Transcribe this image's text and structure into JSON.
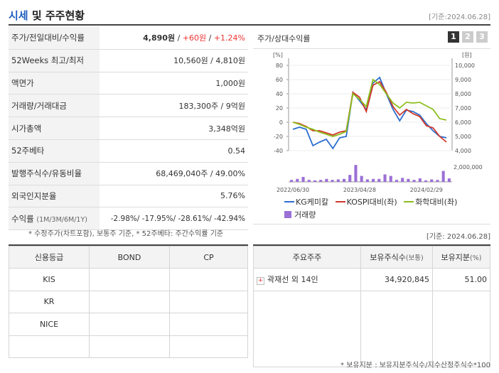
{
  "header": {
    "title_a": "시세",
    "title_b": " 및 주주현황",
    "date": "[기준:2024.06.28]"
  },
  "quote": {
    "rows": [
      {
        "label": "주가/전일대비/수익률",
        "price": "4,890원",
        "sep1": " / ",
        "change": "+60원",
        "sep2": " / ",
        "rate": "+1.24%"
      },
      {
        "label": "52Weeks 최고/최저",
        "value": "10,560원 / 4,810원"
      },
      {
        "label": "액면가",
        "value": "1,000원"
      },
      {
        "label": "거래량/거래대금",
        "value": "183,300주 / 9억원"
      },
      {
        "label": "시가총액",
        "value": "3,348억원"
      },
      {
        "label": "52주베타",
        "value": "0.54"
      },
      {
        "label": "발행주식수/유동비율",
        "value": "68,469,040주 / 49.00%"
      },
      {
        "label": "외국인지분율",
        "value": "5.76%"
      },
      {
        "label": "수익률",
        "label_sub": "(1M/3M/6M/1Y)",
        "value": "-2.98%/ -17.95%/ -28.61%/ -42.94%"
      }
    ],
    "footnote": "* 수정주가(차트포함), 보통주 기준, * 52주베타: 주간수익률 기준"
  },
  "chart_panel": {
    "title": "주가/상대수익률",
    "pages": [
      "1",
      "2",
      "3"
    ],
    "date": "[기준: 2024.06.28]"
  },
  "chart_data": {
    "type": "line",
    "left_unit": "[%]",
    "right_unit": "[원]",
    "left_ticks": [
      "80",
      "60",
      "40",
      "20",
      "0",
      "-20",
      "-40"
    ],
    "left_ylim": [
      -40,
      80
    ],
    "right_ticks": [
      "10,000",
      "9,000",
      "8,000",
      "7,000",
      "6,000",
      "5,000",
      "4,000"
    ],
    "volume_tick": "2,000,000",
    "x_ticks": [
      "2022/06/30",
      "2023/04/28",
      "2024/02/29"
    ],
    "x_tick_index": [
      0,
      10,
      20
    ],
    "series": [
      {
        "name": "KG케미칼",
        "color": "#2c6fd0",
        "values": [
          -10,
          -7,
          -10,
          -33,
          -28,
          -24,
          -37,
          -22,
          -20,
          42,
          30,
          18,
          55,
          63,
          40,
          18,
          2,
          17,
          15,
          10,
          -2,
          -12,
          -20,
          -22
        ]
      },
      {
        "name": "KOSPI대비(좌)",
        "color": "#d0392c",
        "values": [
          0,
          -2,
          -6,
          -12,
          -12,
          -15,
          -18,
          -14,
          -12,
          42,
          35,
          15,
          52,
          57,
          42,
          22,
          10,
          18,
          12,
          8,
          -5,
          -8,
          -20,
          -28
        ]
      },
      {
        "name": "화학대비(좌)",
        "color": "#8cbf1e",
        "values": [
          0,
          -3,
          -7,
          -10,
          -14,
          -17,
          -20,
          -17,
          -13,
          40,
          32,
          22,
          60,
          53,
          40,
          27,
          20,
          28,
          27,
          28,
          23,
          18,
          5,
          3
        ]
      }
    ],
    "volume": {
      "name": "거래량",
      "values": [
        0.2,
        0.3,
        0.5,
        0.2,
        0.15,
        0.2,
        0.3,
        0.2,
        0.25,
        0.3,
        0.7,
        1.7,
        0.6,
        0.25,
        0.3,
        0.3,
        0.75,
        0.6,
        0.2,
        0.4,
        0.3,
        0.2,
        0.35,
        0.15,
        0.25,
        0.2,
        1.1,
        0.35
      ],
      "max": 2
    }
  },
  "credit": {
    "headers": [
      "신용등급",
      "BOND",
      "CP"
    ],
    "rows": [
      [
        "KIS",
        "",
        ""
      ],
      [
        "KR",
        "",
        ""
      ],
      [
        "NICE",
        "",
        ""
      ],
      [
        "",
        "",
        ""
      ]
    ]
  },
  "holders": {
    "headers": [
      "주요주주",
      "보유주식수",
      "(보통)",
      "보유지분",
      "(%)"
    ],
    "rows": [
      {
        "name": "곽재선 외 14인",
        "shares": "34,920,845",
        "pct": "51.00"
      }
    ],
    "footnote": "* 보유지분 : 보유지분주식수/지수산정주식수*100"
  }
}
